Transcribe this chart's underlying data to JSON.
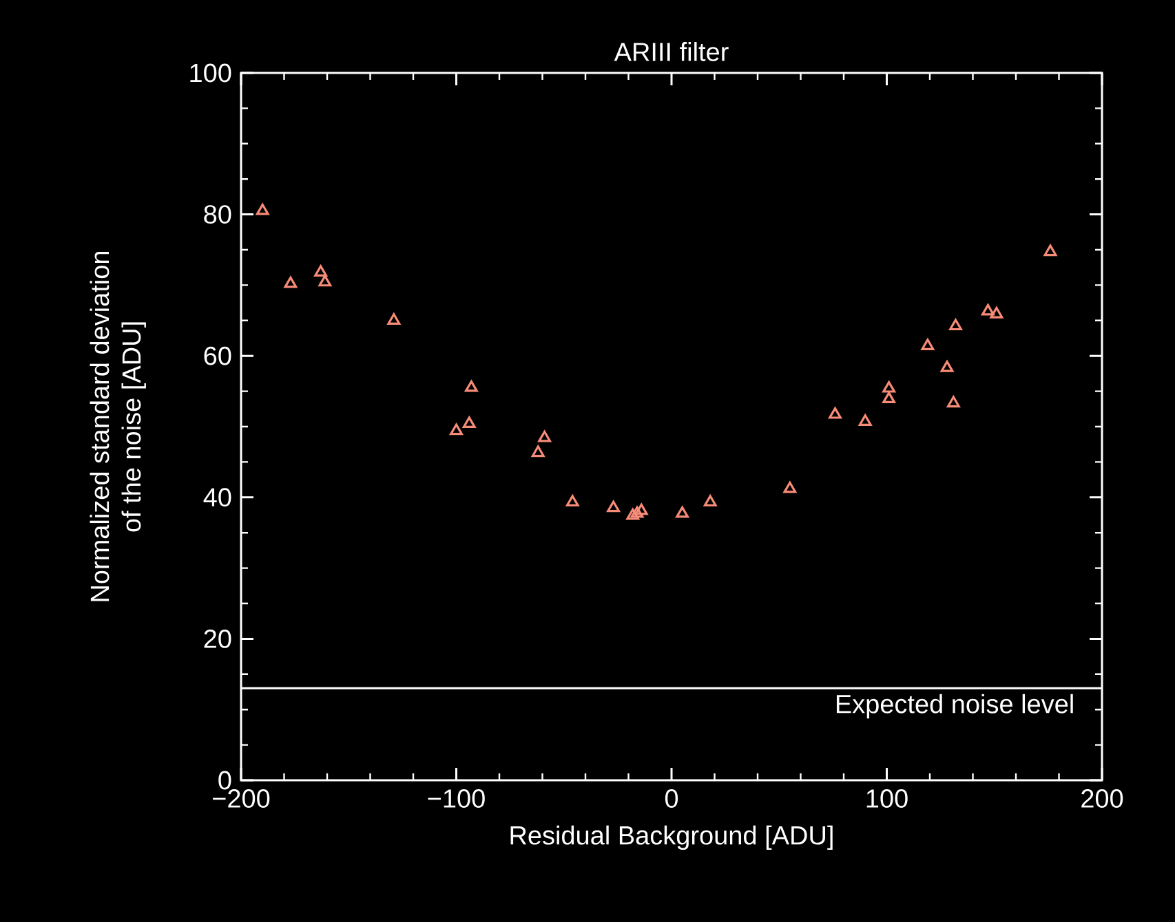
{
  "chart_data": {
    "type": "scatter",
    "title": "ARIII filter",
    "xlabel": "Residual Background [ADU]",
    "ylabel": "Normalized standard deviation\nof the noise [ADU]",
    "xlim": [
      -200,
      200
    ],
    "xticks": [
      {
        "value": -200,
        "label": "−200"
      },
      {
        "value": -100,
        "label": "−100"
      },
      0,
      100,
      200
    ],
    "ylim": [
      0,
      100
    ],
    "yticks": [
      0,
      20,
      40,
      60,
      80,
      100
    ],
    "marker": "triangle",
    "series": [
      {
        "color": "#f88c78",
        "x": [
          -190,
          -177,
          -163,
          -161,
          -129,
          -100,
          -94,
          -93,
          -62,
          -59,
          -46,
          -27,
          -18,
          -16,
          -14,
          5,
          18,
          55,
          76,
          90,
          101,
          101,
          119,
          128,
          131,
          132,
          147,
          151,
          176
        ],
        "values": [
          80.5,
          70.2,
          71.8,
          70.4,
          65,
          49.4,
          50.4,
          55.5,
          46.3,
          48.4,
          39.3,
          38.5,
          37.4,
          37.7,
          38.1,
          37.7,
          39.3,
          41.2,
          51.7,
          50.7,
          53.9,
          55.4,
          61.4,
          58.3,
          53.3,
          64.2,
          66.3,
          65.9,
          74.7
        ]
      }
    ],
    "ref_lines": [
      {
        "axis": "y",
        "value": 13,
        "label": "Expected noise level",
        "color": "#ffffff"
      }
    ]
  }
}
